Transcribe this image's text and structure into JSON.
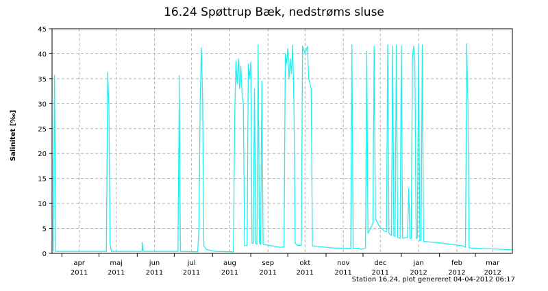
{
  "chart_data": {
    "type": "line",
    "title": "16.24 Spøttrup Bæk, nedstrøms sluse",
    "xlabel": "",
    "ylabel": "Salinitet [‰]",
    "footer": "Station 16.24, plot genereret 04-04-2012 06:17",
    "grid": true,
    "colors": {
      "series": "#22eeee",
      "grid": "#b4b4b4",
      "axis": "#000000"
    },
    "xlim": [
      "2011-03-24",
      "2012-03-31"
    ],
    "ylim": [
      0,
      45
    ],
    "yticks": [
      0,
      5,
      10,
      15,
      20,
      25,
      30,
      35,
      40,
      45
    ],
    "month_labels": [
      {
        "month": "apr",
        "year": "2011",
        "date": "2011-04-15"
      },
      {
        "month": "maj",
        "year": "2011",
        "date": "2011-05-15"
      },
      {
        "month": "jun",
        "year": "2011",
        "date": "2011-06-15"
      },
      {
        "month": "jul",
        "year": "2011",
        "date": "2011-07-15"
      },
      {
        "month": "aug",
        "year": "2011",
        "date": "2011-08-15"
      },
      {
        "month": "sep",
        "year": "2011",
        "date": "2011-09-15"
      },
      {
        "month": "okt",
        "year": "2011",
        "date": "2011-10-15"
      },
      {
        "month": "nov",
        "year": "2011",
        "date": "2011-11-15"
      },
      {
        "month": "dec",
        "year": "2011",
        "date": "2011-12-15"
      },
      {
        "month": "jan",
        "year": "2012",
        "date": "2012-01-15"
      },
      {
        "month": "feb",
        "year": "2012",
        "date": "2012-02-15"
      },
      {
        "month": "mar",
        "year": "2012",
        "date": "2012-03-15"
      }
    ],
    "month_boundaries": [
      "2011-04-01",
      "2011-05-01",
      "2011-06-01",
      "2011-07-01",
      "2011-08-01",
      "2011-09-01",
      "2011-10-01",
      "2011-11-01",
      "2011-12-01",
      "2012-01-01",
      "2012-02-01",
      "2012-03-01"
    ],
    "series": [
      {
        "points": [
          [
            "2011-03-25",
            0.4
          ],
          [
            "2011-03-26",
            35.7
          ],
          [
            "2011-03-27",
            0.4
          ],
          [
            "2011-05-07",
            0.4
          ],
          [
            "2011-05-08",
            34
          ],
          [
            "2011-05-08",
            36.3
          ],
          [
            "2011-05-09",
            30
          ],
          [
            "2011-05-10",
            2
          ],
          [
            "2011-05-11",
            0.4
          ],
          [
            "2011-06-05",
            0.4
          ],
          [
            "2011-06-05",
            2.2
          ],
          [
            "2011-06-06",
            0.4
          ],
          [
            "2011-07-04",
            0.4
          ],
          [
            "2011-07-05",
            31
          ],
          [
            "2011-07-05",
            35.6
          ],
          [
            "2011-07-06",
            0.4
          ],
          [
            "2011-07-20",
            0.3
          ],
          [
            "2011-07-21",
            5
          ],
          [
            "2011-07-22",
            30
          ],
          [
            "2011-07-23",
            41.2
          ],
          [
            "2011-07-24",
            31
          ],
          [
            "2011-07-25",
            1.5
          ],
          [
            "2011-07-27",
            0.8
          ],
          [
            "2011-08-03",
            0.4
          ],
          [
            "2011-08-18",
            0.3
          ],
          [
            "2011-08-19",
            27
          ],
          [
            "2011-08-20",
            38.5
          ],
          [
            "2011-08-21",
            34
          ],
          [
            "2011-08-22",
            39
          ],
          [
            "2011-08-23",
            33
          ],
          [
            "2011-08-24",
            37.5
          ],
          [
            "2011-08-25",
            32
          ],
          [
            "2011-08-26",
            30
          ],
          [
            "2011-08-27",
            1.5
          ],
          [
            "2011-08-29",
            1.6
          ],
          [
            "2011-08-30",
            38
          ],
          [
            "2011-08-31",
            35
          ],
          [
            "2011-09-01",
            38.3
          ],
          [
            "2011-09-02",
            2
          ],
          [
            "2011-09-03",
            2
          ],
          [
            "2011-09-04",
            33
          ],
          [
            "2011-09-05",
            2
          ],
          [
            "2011-09-06",
            1.8
          ],
          [
            "2011-09-07",
            41.8
          ],
          [
            "2011-09-08",
            2
          ],
          [
            "2011-09-09",
            1.8
          ],
          [
            "2011-09-10",
            34.5
          ],
          [
            "2011-09-11",
            1.8
          ],
          [
            "2011-09-25",
            1.2
          ],
          [
            "2011-09-28",
            1.3
          ],
          [
            "2011-09-29",
            40
          ],
          [
            "2011-09-30",
            38
          ],
          [
            "2011-10-01",
            41
          ],
          [
            "2011-10-02",
            35
          ],
          [
            "2011-10-03",
            39
          ],
          [
            "2011-10-04",
            36
          ],
          [
            "2011-10-05",
            41.7
          ],
          [
            "2011-10-06",
            30
          ],
          [
            "2011-10-07",
            2
          ],
          [
            "2011-10-09",
            1.6
          ],
          [
            "2011-10-12",
            1.6
          ],
          [
            "2011-10-13",
            41.5
          ],
          [
            "2011-10-15",
            40
          ],
          [
            "2011-10-17",
            41.5
          ],
          [
            "2011-10-18",
            35
          ],
          [
            "2011-10-20",
            33
          ],
          [
            "2011-10-21",
            1.5
          ],
          [
            "2011-11-06",
            1.1
          ],
          [
            "2011-11-21",
            1
          ],
          [
            "2011-11-22",
            41.8
          ],
          [
            "2011-11-23",
            1
          ],
          [
            "2011-11-28",
            1
          ],
          [
            "2011-11-29",
            0.8
          ],
          [
            "2011-12-03",
            1
          ],
          [
            "2011-12-04",
            40.5
          ],
          [
            "2011-12-05",
            4
          ],
          [
            "2011-12-09",
            6
          ],
          [
            "2011-12-10",
            41.5
          ],
          [
            "2011-12-11",
            7
          ],
          [
            "2011-12-14",
            5.5
          ],
          [
            "2011-12-18",
            4.5
          ],
          [
            "2011-12-20",
            4.3
          ],
          [
            "2011-12-21",
            41.8
          ],
          [
            "2011-12-22",
            4
          ],
          [
            "2011-12-24",
            3.6
          ],
          [
            "2011-12-25",
            41.5
          ],
          [
            "2011-12-26",
            3.5
          ],
          [
            "2011-12-27",
            3.4
          ],
          [
            "2011-12-28",
            41.7
          ],
          [
            "2011-12-29",
            3.2
          ],
          [
            "2011-12-31",
            3
          ],
          [
            "2012-01-01",
            41.6
          ],
          [
            "2012-01-02",
            3
          ],
          [
            "2012-01-06",
            3.2
          ],
          [
            "2012-01-07",
            13
          ],
          [
            "2012-01-08",
            3
          ],
          [
            "2012-01-09",
            3
          ],
          [
            "2012-01-10",
            39
          ],
          [
            "2012-01-11",
            41.5
          ],
          [
            "2012-01-12",
            38
          ],
          [
            "2012-01-13",
            3
          ],
          [
            "2012-01-14",
            3
          ],
          [
            "2012-01-15",
            41.8
          ],
          [
            "2012-01-16",
            2.5
          ],
          [
            "2012-01-17",
            2.6
          ],
          [
            "2012-01-18",
            41.8
          ],
          [
            "2012-01-19",
            2.4
          ],
          [
            "2012-02-01",
            2.1
          ],
          [
            "2012-02-20",
            1.5
          ],
          [
            "2012-02-22",
            1.2
          ],
          [
            "2012-02-23",
            38
          ],
          [
            "2012-02-23",
            42
          ],
          [
            "2012-02-24",
            30
          ],
          [
            "2012-02-25",
            1.1
          ],
          [
            "2012-03-31",
            0.7
          ]
        ]
      }
    ]
  }
}
